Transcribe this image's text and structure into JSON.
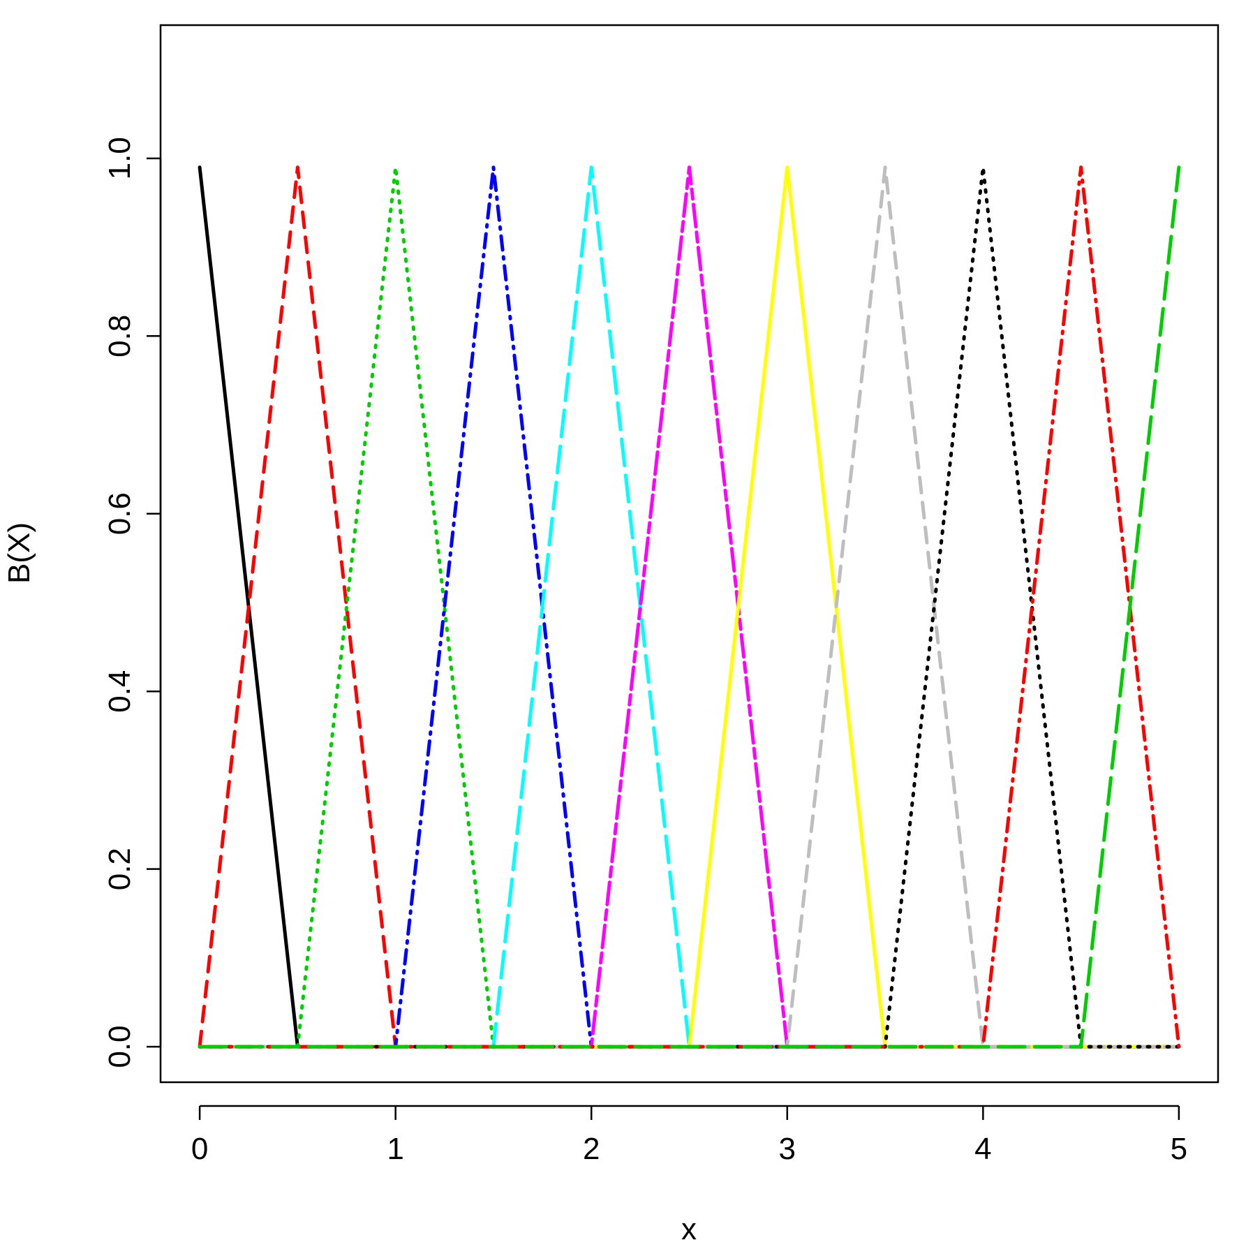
{
  "chart_data": {
    "type": "line",
    "title": "",
    "xlabel": "x",
    "ylabel": "B(X)",
    "xlim": [
      -0.2,
      5.2
    ],
    "ylim": [
      -0.04,
      1.15
    ],
    "x_ticks": [
      0,
      1,
      2,
      3,
      4,
      5
    ],
    "x_tick_labels": [
      "0",
      "1",
      "2",
      "3",
      "4",
      "5"
    ],
    "y_ticks": [
      0.0,
      0.2,
      0.4,
      0.6,
      0.8,
      1.0
    ],
    "y_tick_labels": [
      "0.0",
      "0.2",
      "0.4",
      "0.6",
      "0.8",
      "1.0"
    ],
    "grid": false,
    "legend": "none",
    "series": [
      {
        "x": [
          0,
          0.5,
          5
        ],
        "y": [
          0.99,
          0,
          0
        ],
        "color": "#000000",
        "dash": "solid"
      },
      {
        "x": [
          0,
          0.5,
          1,
          5
        ],
        "y": [
          0,
          0.99,
          0,
          0
        ],
        "color": "#ff0000",
        "dash": "dashed"
      },
      {
        "x": [
          0,
          0.5,
          1,
          1.5,
          5
        ],
        "y": [
          0,
          0,
          0.99,
          0,
          0
        ],
        "color": "#00cd00",
        "dash": "dotted"
      },
      {
        "x": [
          0,
          1,
          1.5,
          2,
          5
        ],
        "y": [
          0,
          0,
          0.99,
          0,
          0
        ],
        "color": "#0000ff",
        "dash": "dotdash"
      },
      {
        "x": [
          0,
          1.5,
          2,
          2.5,
          5
        ],
        "y": [
          0,
          0,
          0.99,
          0,
          0
        ],
        "color": "#00ffff",
        "dash": "longdash"
      },
      {
        "x": [
          0,
          2,
          2.5,
          3,
          5
        ],
        "y": [
          0,
          0,
          0.99,
          0,
          0
        ],
        "color": "#ff00ff",
        "dash": "twodash"
      },
      {
        "x": [
          0,
          2.5,
          3,
          3.5,
          5
        ],
        "y": [
          0,
          0,
          0.99,
          0,
          0
        ],
        "color": "#ffff00",
        "dash": "solid"
      },
      {
        "x": [
          0,
          3,
          3.5,
          4,
          5
        ],
        "y": [
          0,
          0,
          0.99,
          0,
          0
        ],
        "color": "#bebebe",
        "dash": "dashed"
      },
      {
        "x": [
          0,
          3.5,
          4,
          4.5,
          5
        ],
        "y": [
          0,
          0,
          0.99,
          0,
          0
        ],
        "color": "#000000",
        "dash": "dotted"
      },
      {
        "x": [
          0,
          4,
          4.5,
          5
        ],
        "y": [
          0,
          0,
          0.99,
          0
        ],
        "color": "#ff0000",
        "dash": "dotdash"
      },
      {
        "x": [
          0,
          4.5,
          5
        ],
        "y": [
          0,
          0,
          0.99
        ],
        "color": "#00cd00",
        "dash": "longdash"
      }
    ]
  }
}
